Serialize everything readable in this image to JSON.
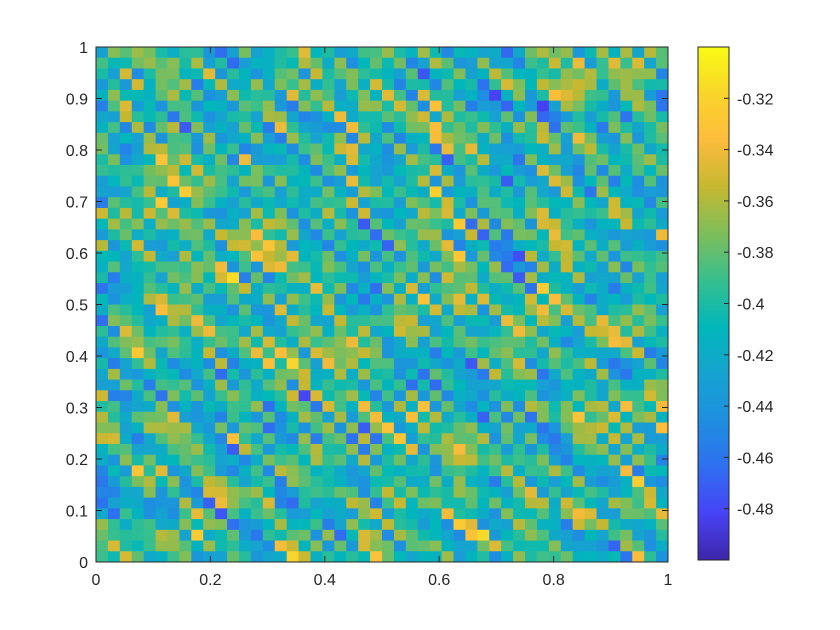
{
  "chart_data": {
    "type": "heatmap",
    "title": "",
    "xlabel": "",
    "ylabel": "",
    "xlim": [
      0,
      1
    ],
    "ylim": [
      0,
      1
    ],
    "xticks": [
      0,
      0.2,
      0.4,
      0.6,
      0.8,
      1
    ],
    "xtick_labels": [
      "0",
      "0.2",
      "0.4",
      "0.6",
      "0.8",
      "1"
    ],
    "yticks": [
      0,
      0.1,
      0.2,
      0.3,
      0.4,
      0.5,
      0.6,
      0.7,
      0.8,
      0.9,
      1
    ],
    "ytick_labels": [
      "0",
      "0.1",
      "0.2",
      "0.3",
      "0.4",
      "0.5",
      "0.6",
      "0.7",
      "0.8",
      "0.9",
      "1"
    ],
    "colorbar": {
      "clim": [
        -0.5,
        -0.3
      ],
      "ticks": [
        -0.32,
        -0.34,
        -0.36,
        -0.38,
        -0.4,
        -0.42,
        -0.44,
        -0.46,
        -0.48
      ],
      "tick_labels": [
        "-0.32",
        "-0.34",
        "-0.36",
        "-0.38",
        "-0.4",
        "-0.42",
        "-0.44",
        "-0.46",
        "-0.48"
      ],
      "colormap": "parula",
      "colormap_stops": [
        "#3e26a8",
        "#4743f6",
        "#2f6ff0",
        "#1e8fe0",
        "#16a3cf",
        "#01b7ba",
        "#37bf8e",
        "#7ebe5a",
        "#c6b831",
        "#fcbc3c",
        "#f9d52b",
        "#f9fb15"
      ]
    },
    "grid": false,
    "legend": "none",
    "colors": {
      "axis": "#262626",
      "background": "#ffffff"
    }
  }
}
